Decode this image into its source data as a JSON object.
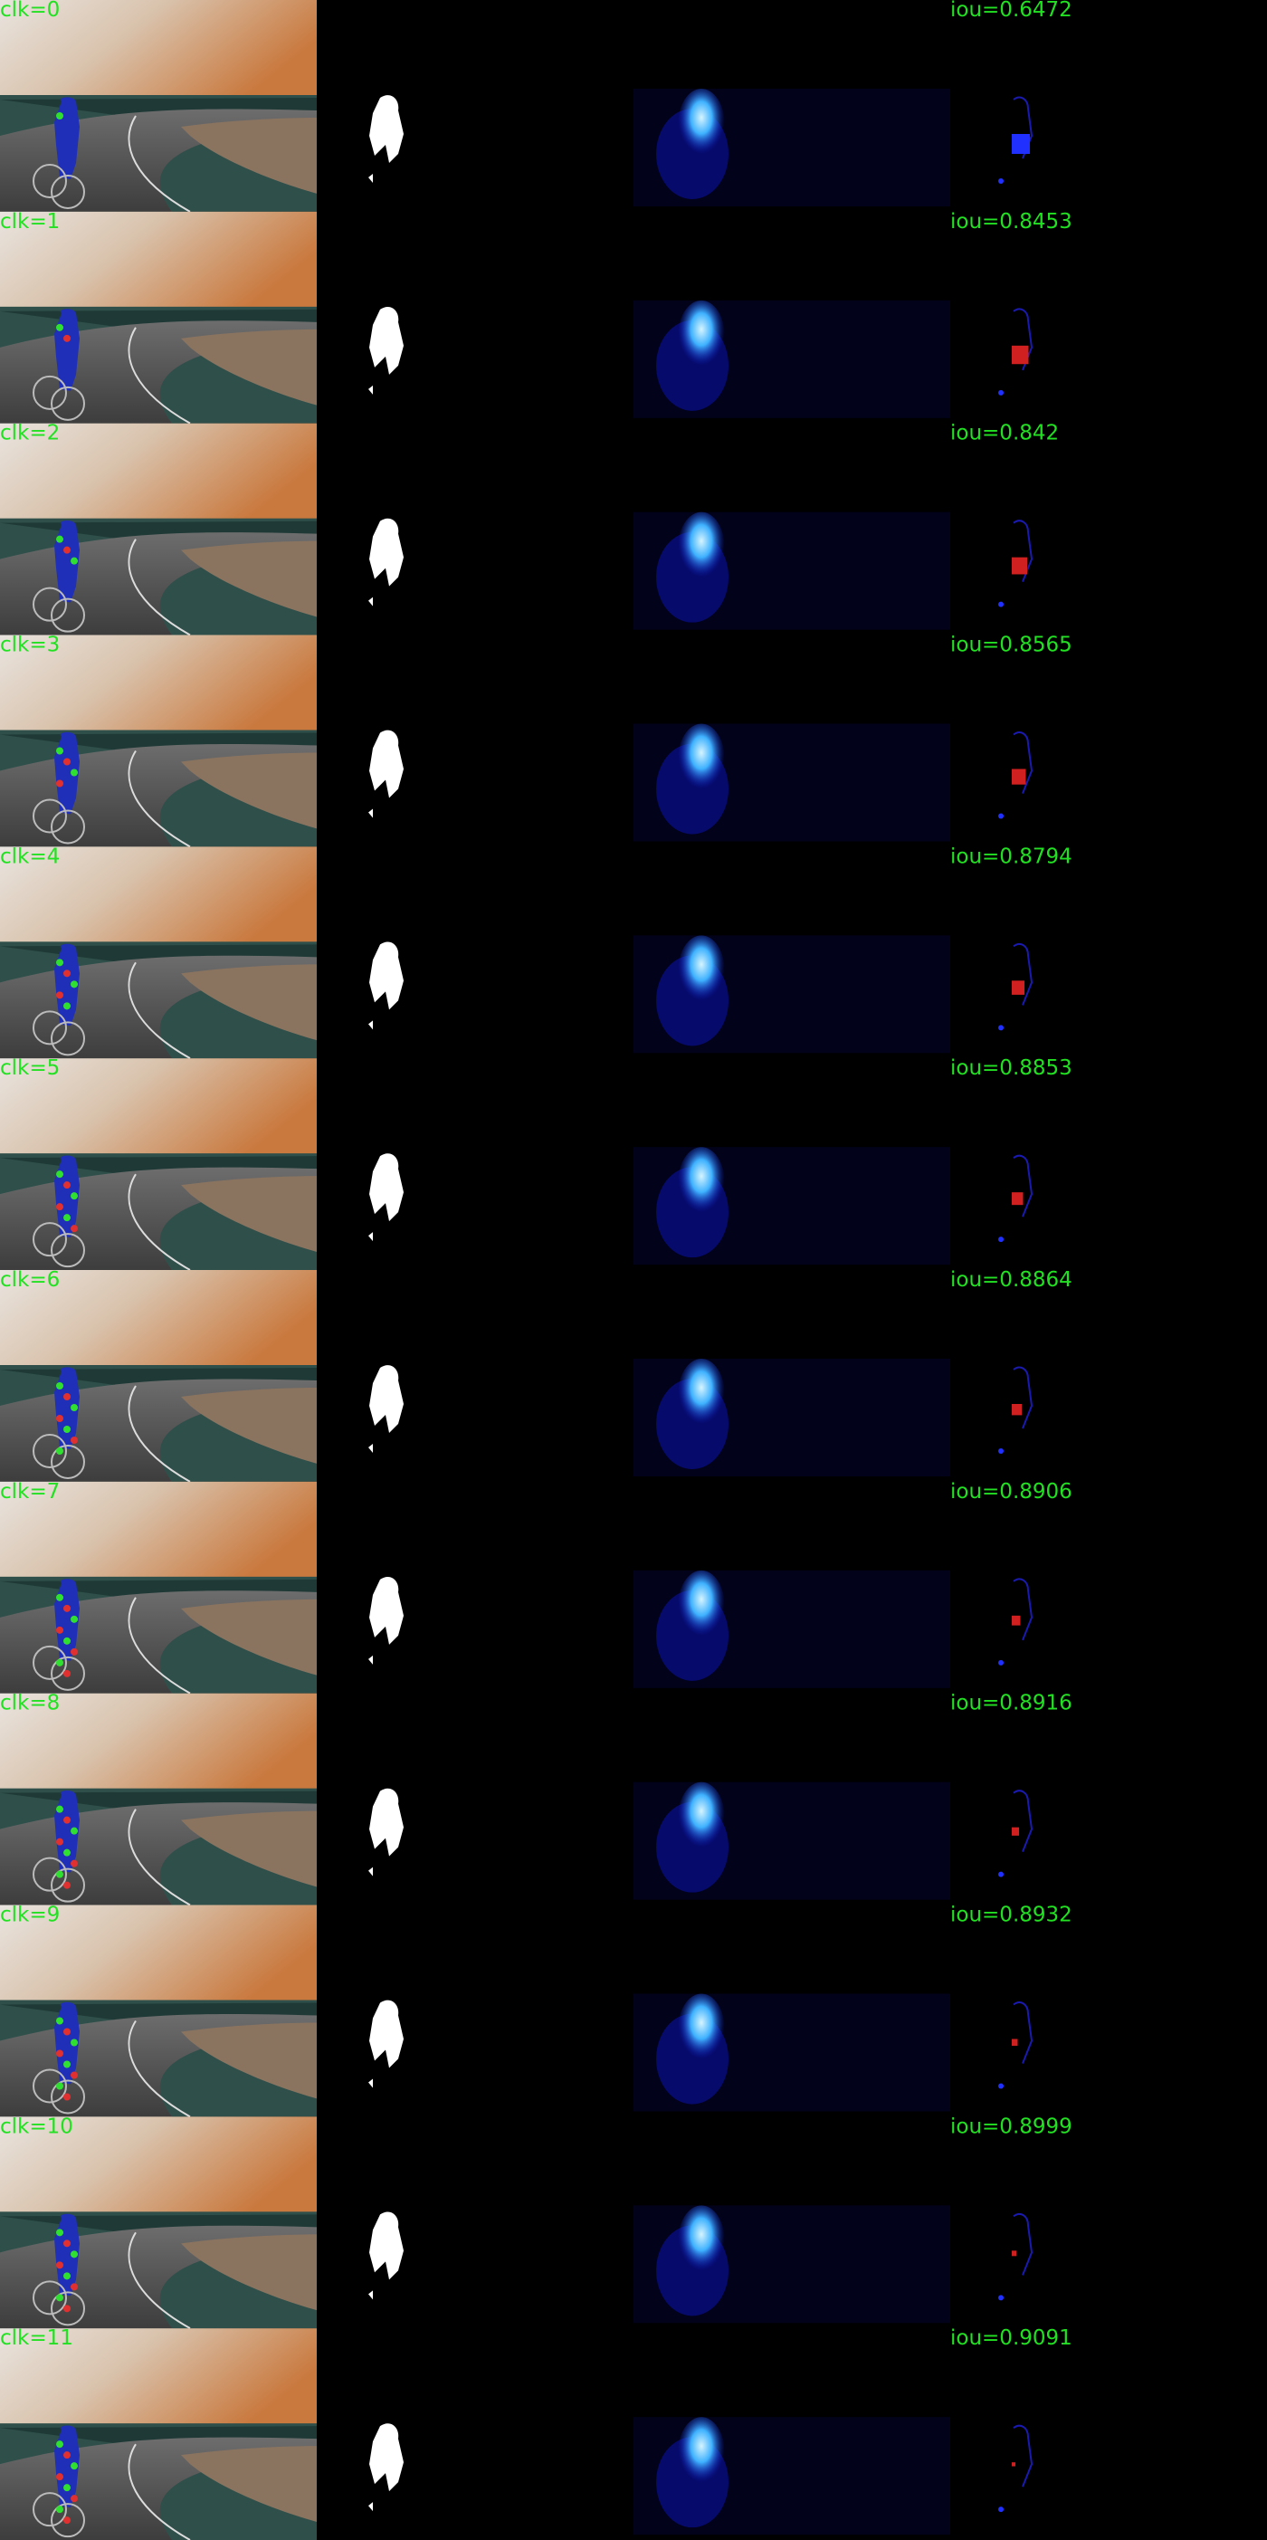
{
  "rows": [
    {
      "clk": "clk=0",
      "iou": "iou=0.6472"
    },
    {
      "clk": "clk=1",
      "iou": "iou=0.8453"
    },
    {
      "clk": "clk=2",
      "iou": "iou=0.842"
    },
    {
      "clk": "clk=3",
      "iou": "iou=0.8565"
    },
    {
      "clk": "clk=4",
      "iou": "iou=0.8794"
    },
    {
      "clk": "clk=5",
      "iou": "iou=0.8853"
    },
    {
      "clk": "clk=6",
      "iou": "iou=0.8864"
    },
    {
      "clk": "clk=7",
      "iou": "iou=0.8906"
    },
    {
      "clk": "clk=8",
      "iou": "iou=0.8916"
    },
    {
      "clk": "clk=9",
      "iou": "iou=0.8932"
    },
    {
      "clk": "clk=10",
      "iou": "iou=0.8999"
    },
    {
      "clk": "clk=11",
      "iou": "iou=0.9091"
    }
  ]
}
